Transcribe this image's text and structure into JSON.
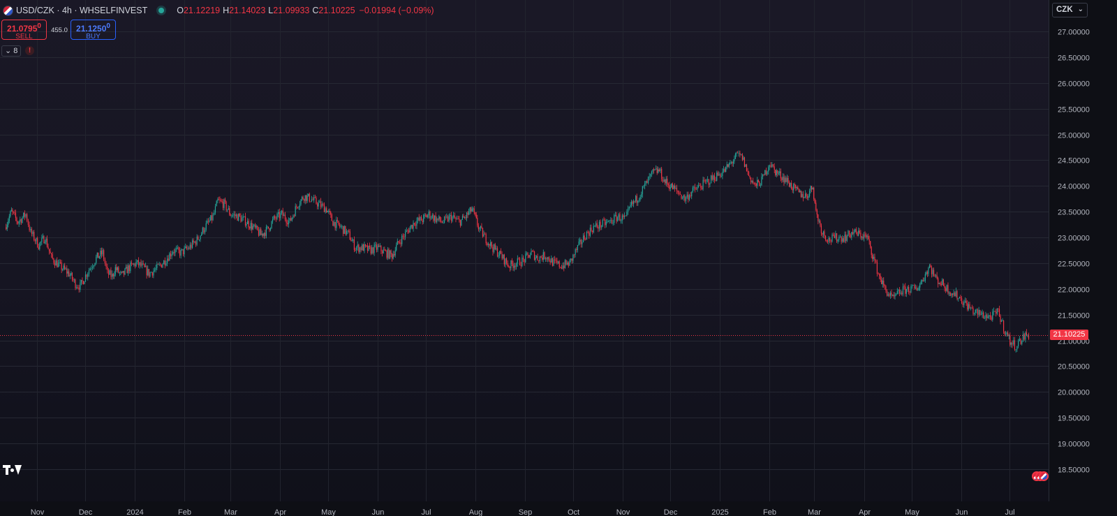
{
  "header": {
    "symbol": "USD/CZK · 4h · WHSELFINVEST",
    "ohlc": {
      "o_key": "O",
      "o_val": "21.12219",
      "h_key": "H",
      "h_val": "21.14023",
      "l_key": "L",
      "l_val": "21.09933",
      "c_key": "C",
      "c_val": "21.10225",
      "change": "−0.01994 (−0.09%)"
    }
  },
  "trade": {
    "sell_price": "21.0795",
    "sell_sup": "0",
    "sell_label": "SELL",
    "spread": "455.0",
    "buy_price": "21.1250",
    "buy_sup": "0",
    "buy_label": "BUY"
  },
  "indicators": {
    "count": "8",
    "alert": "!"
  },
  "currency": {
    "selected": "CZK",
    "chevron": "⌄"
  },
  "colors": {
    "up": "#26a69a",
    "down": "#f23645",
    "price_line": "#f23645"
  },
  "chart_data": {
    "type": "candlestick",
    "title": "",
    "xlabel": "",
    "ylabel": "",
    "ylim": [
      18.3,
      27.3
    ],
    "y_ticks": [
      "27.00000",
      "26.50000",
      "26.00000",
      "25.50000",
      "25.00000",
      "24.50000",
      "24.00000",
      "23.50000",
      "23.00000",
      "22.50000",
      "22.00000",
      "21.50000",
      "21.00000",
      "20.50000",
      "20.00000",
      "19.50000",
      "19.00000",
      "18.50000"
    ],
    "y_tick_values": [
      27.0,
      26.5,
      26.0,
      25.5,
      25.0,
      24.5,
      24.0,
      23.5,
      23.0,
      22.5,
      22.0,
      21.5,
      21.0,
      20.5,
      20.0,
      19.5,
      19.0,
      18.5
    ],
    "x_ticks": [
      {
        "label": "Nov",
        "date": "2023-11-01"
      },
      {
        "label": "Dec",
        "date": "2023-12-01"
      },
      {
        "label": "2024",
        "date": "2024-01-01"
      },
      {
        "label": "Feb",
        "date": "2024-02-01"
      },
      {
        "label": "Mar",
        "date": "2024-03-01"
      },
      {
        "label": "Apr",
        "date": "2024-04-01"
      },
      {
        "label": "May",
        "date": "2024-05-01"
      },
      {
        "label": "Jun",
        "date": "2024-06-01"
      },
      {
        "label": "Jul",
        "date": "2024-07-01"
      },
      {
        "label": "Aug",
        "date": "2024-08-01"
      },
      {
        "label": "Sep",
        "date": "2024-09-01"
      },
      {
        "label": "Oct",
        "date": "2024-10-01"
      },
      {
        "label": "Nov",
        "date": "2024-11-01"
      },
      {
        "label": "Dec",
        "date": "2024-12-01"
      },
      {
        "label": "2025",
        "date": "2025-01-01"
      },
      {
        "label": "Feb",
        "date": "2025-02-01"
      },
      {
        "label": "Mar",
        "date": "2025-03-01"
      },
      {
        "label": "Apr",
        "date": "2025-04-01"
      },
      {
        "label": "May",
        "date": "2025-05-01"
      },
      {
        "label": "Jun",
        "date": "2025-06-01"
      },
      {
        "label": "Jul",
        "date": "2025-07-01"
      }
    ],
    "current_price": 21.10225,
    "current_price_label": "21.10225",
    "series": [
      {
        "values": [
          [
            "2023-10-12",
            23.2
          ],
          [
            "2023-10-16",
            23.5
          ],
          [
            "2023-10-20",
            23.3
          ],
          [
            "2023-10-25",
            23.45
          ],
          [
            "2023-10-28",
            23.1
          ],
          [
            "2023-11-02",
            22.85
          ],
          [
            "2023-11-06",
            23.0
          ],
          [
            "2023-11-10",
            22.6
          ],
          [
            "2023-11-15",
            22.45
          ],
          [
            "2023-11-21",
            22.3
          ],
          [
            "2023-11-25",
            22.1
          ],
          [
            "2023-11-28",
            22.05
          ],
          [
            "2023-12-02",
            22.3
          ],
          [
            "2023-12-05",
            22.45
          ],
          [
            "2023-12-08",
            22.6
          ],
          [
            "2023-12-12",
            22.7
          ],
          [
            "2023-12-15",
            22.3
          ],
          [
            "2023-12-18",
            22.25
          ],
          [
            "2023-12-20",
            22.4
          ],
          [
            "2023-12-24",
            22.25
          ],
          [
            "2023-12-28",
            22.4
          ],
          [
            "2024-01-02",
            22.5
          ],
          [
            "2024-01-05",
            22.45
          ],
          [
            "2024-01-10",
            22.3
          ],
          [
            "2024-01-15",
            22.4
          ],
          [
            "2024-01-20",
            22.55
          ],
          [
            "2024-01-25",
            22.75
          ],
          [
            "2024-01-30",
            22.7
          ],
          [
            "2024-02-04",
            22.8
          ],
          [
            "2024-02-09",
            22.95
          ],
          [
            "2024-02-14",
            23.2
          ],
          [
            "2024-02-19",
            23.4
          ],
          [
            "2024-02-22",
            23.7
          ],
          [
            "2024-02-26",
            23.65
          ],
          [
            "2024-03-01",
            23.45
          ],
          [
            "2024-03-06",
            23.4
          ],
          [
            "2024-03-11",
            23.3
          ],
          [
            "2024-03-15",
            23.2
          ],
          [
            "2024-03-20",
            23.05
          ],
          [
            "2024-03-24",
            23.15
          ],
          [
            "2024-03-28",
            23.35
          ],
          [
            "2024-04-02",
            23.45
          ],
          [
            "2024-04-07",
            23.3
          ],
          [
            "2024-04-12",
            23.65
          ],
          [
            "2024-04-16",
            23.8
          ],
          [
            "2024-04-20",
            23.75
          ],
          [
            "2024-04-25",
            23.65
          ],
          [
            "2024-04-30",
            23.55
          ],
          [
            "2024-05-04",
            23.3
          ],
          [
            "2024-05-09",
            23.2
          ],
          [
            "2024-05-14",
            23.05
          ],
          [
            "2024-05-18",
            22.8
          ],
          [
            "2024-05-23",
            22.8
          ],
          [
            "2024-05-27",
            22.75
          ],
          [
            "2024-06-01",
            22.8
          ],
          [
            "2024-06-06",
            22.7
          ],
          [
            "2024-06-10",
            22.65
          ],
          [
            "2024-06-14",
            22.9
          ],
          [
            "2024-06-19",
            23.1
          ],
          [
            "2024-06-24",
            23.3
          ],
          [
            "2024-06-29",
            23.35
          ],
          [
            "2024-07-03",
            23.45
          ],
          [
            "2024-07-08",
            23.35
          ],
          [
            "2024-07-12",
            23.3
          ],
          [
            "2024-07-17",
            23.4
          ],
          [
            "2024-07-22",
            23.3
          ],
          [
            "2024-07-26",
            23.4
          ],
          [
            "2024-07-30",
            23.55
          ],
          [
            "2024-08-03",
            23.2
          ],
          [
            "2024-08-07",
            23.0
          ],
          [
            "2024-08-12",
            22.8
          ],
          [
            "2024-08-17",
            22.65
          ],
          [
            "2024-08-22",
            22.45
          ],
          [
            "2024-08-26",
            22.5
          ],
          [
            "2024-08-31",
            22.55
          ],
          [
            "2024-09-05",
            22.7
          ],
          [
            "2024-09-09",
            22.6
          ],
          [
            "2024-09-14",
            22.65
          ],
          [
            "2024-09-19",
            22.5
          ],
          [
            "2024-09-24",
            22.45
          ],
          [
            "2024-09-29",
            22.5
          ],
          [
            "2024-10-04",
            22.8
          ],
          [
            "2024-10-09",
            23.05
          ],
          [
            "2024-10-14",
            23.2
          ],
          [
            "2024-10-19",
            23.25
          ],
          [
            "2024-10-24",
            23.3
          ],
          [
            "2024-10-29",
            23.4
          ],
          [
            "2024-11-03",
            23.35
          ],
          [
            "2024-11-06",
            23.6
          ],
          [
            "2024-11-10",
            23.75
          ],
          [
            "2024-11-15",
            24.0
          ],
          [
            "2024-11-20",
            24.25
          ],
          [
            "2024-11-24",
            24.3
          ],
          [
            "2024-11-27",
            24.1
          ],
          [
            "2024-12-01",
            24.0
          ],
          [
            "2024-12-05",
            23.9
          ],
          [
            "2024-12-10",
            23.75
          ],
          [
            "2024-12-15",
            23.9
          ],
          [
            "2024-12-20",
            24.0
          ],
          [
            "2024-12-25",
            24.1
          ],
          [
            "2024-12-30",
            24.2
          ],
          [
            "2025-01-04",
            24.3
          ],
          [
            "2025-01-08",
            24.45
          ],
          [
            "2025-01-12",
            24.6
          ],
          [
            "2025-01-15",
            24.55
          ],
          [
            "2025-01-19",
            24.2
          ],
          [
            "2025-01-23",
            24.0
          ],
          [
            "2025-01-27",
            24.1
          ],
          [
            "2025-02-01",
            24.45
          ],
          [
            "2025-02-04",
            24.3
          ],
          [
            "2025-02-08",
            24.2
          ],
          [
            "2025-02-12",
            24.1
          ],
          [
            "2025-02-16",
            23.95
          ],
          [
            "2025-02-20",
            23.85
          ],
          [
            "2025-02-24",
            23.8
          ],
          [
            "2025-02-28",
            24.0
          ],
          [
            "2025-03-02",
            23.5
          ],
          [
            "2025-03-06",
            23.1
          ],
          [
            "2025-03-10",
            22.95
          ],
          [
            "2025-03-15",
            23.0
          ],
          [
            "2025-03-20",
            23.0
          ],
          [
            "2025-03-25",
            23.1
          ],
          [
            "2025-03-30",
            23.05
          ],
          [
            "2025-04-03",
            23.0
          ],
          [
            "2025-04-07",
            22.6
          ],
          [
            "2025-04-10",
            22.3
          ],
          [
            "2025-04-14",
            22.0
          ],
          [
            "2025-04-19",
            21.8
          ],
          [
            "2025-04-24",
            21.95
          ],
          [
            "2025-04-29",
            22.0
          ],
          [
            "2025-05-04",
            22.0
          ],
          [
            "2025-05-08",
            22.2
          ],
          [
            "2025-05-12",
            22.45
          ],
          [
            "2025-05-16",
            22.2
          ],
          [
            "2025-05-20",
            22.1
          ],
          [
            "2025-05-25",
            21.95
          ],
          [
            "2025-05-30",
            21.85
          ],
          [
            "2025-06-04",
            21.7
          ],
          [
            "2025-06-09",
            21.55
          ],
          [
            "2025-06-14",
            21.5
          ],
          [
            "2025-06-19",
            21.45
          ],
          [
            "2025-06-24",
            21.55
          ],
          [
            "2025-06-28",
            21.2
          ],
          [
            "2025-07-02",
            20.95
          ],
          [
            "2025-07-05",
            20.9
          ],
          [
            "2025-07-08",
            21.0
          ],
          [
            "2025-07-11",
            21.1
          ],
          [
            "2025-07-13",
            21.10225
          ]
        ]
      }
    ]
  }
}
